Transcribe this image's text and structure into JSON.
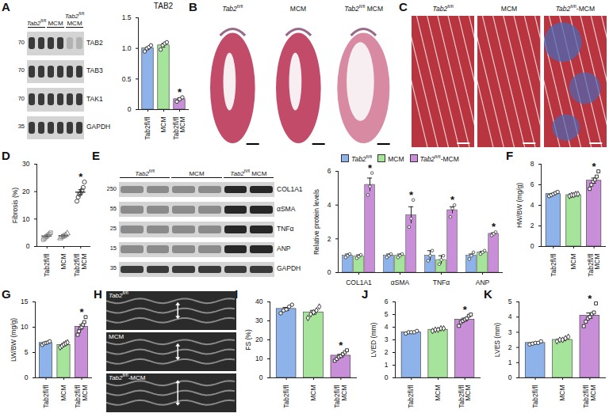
{
  "chart_data": [
    {
      "panel": "A",
      "type": "bar",
      "title": "TAB2",
      "categories": [
        "Tab2fl/fl",
        "MCM",
        "Tab2fl/fl MCM"
      ],
      "values": [
        1.0,
        1.05,
        0.17
      ],
      "errors": [
        0.02,
        0.03,
        0.02
      ],
      "points": [
        [
          0.95,
          1.0,
          1.02,
          1.05
        ],
        [
          0.98,
          1.05,
          1.08,
          1.1
        ],
        [
          0.13,
          0.17,
          0.2
        ]
      ],
      "colors": [
        "#8db3ea",
        "#a6e39b",
        "#c88fd8"
      ],
      "markers": [
        "circle",
        "circle",
        "circle"
      ],
      "ylim": [
        0,
        1.5
      ],
      "yticks": [
        0,
        0.5,
        {
          "value": 1,
          "label": "1.0"
        },
        1.5
      ],
      "annotations": [
        {
          "category": "Tab2fl/fl MCM",
          "text": "*"
        }
      ]
    },
    {
      "panel": "D",
      "type": "scatter",
      "ylabel": "Fibrosis (%)",
      "categories": [
        "Tab2fl/fl",
        "MCM",
        "Tab2fl/fl MCM"
      ],
      "values": [
        3.8,
        3.9,
        19.8
      ],
      "errors": [
        0.4,
        0.3,
        0.9
      ],
      "points": [
        [
          2.5,
          3,
          3.5,
          4,
          4.5,
          5
        ],
        [
          3,
          3.5,
          3.8,
          4.2,
          4.8
        ],
        [
          16.5,
          18,
          19,
          19.5,
          20.5,
          21.5,
          23.5
        ]
      ],
      "colors": [
        "#808080",
        "#808080",
        "#333333"
      ],
      "markers": [
        "square",
        "triangle",
        "circle"
      ],
      "ylim": [
        0,
        30
      ],
      "yticks": [
        0,
        10,
        20,
        30
      ],
      "annotations": [
        {
          "category": "Tab2fl/fl MCM",
          "text": "*"
        }
      ]
    },
    {
      "panel": "E",
      "type": "bar",
      "ylabel": "Relative protein levels",
      "categories": [
        "COL1A1",
        "αSMA",
        "TNFα",
        "ANP"
      ],
      "series": [
        {
          "name": "Tab2fl/fl",
          "color": "#8db3ea",
          "values": [
            1.0,
            1.0,
            1.0,
            1.0
          ],
          "errors": [
            0.1,
            0.1,
            0.3,
            0.1
          ],
          "points": [
            [
              0.9,
              1.0,
              1.1
            ],
            [
              0.9,
              1.0,
              1.1
            ],
            [
              0.7,
              1.0,
              1.3
            ],
            [
              0.8,
              1.0,
              1.2
            ]
          ]
        },
        {
          "name": "MCM",
          "color": "#a6e39b",
          "values": [
            0.95,
            1.0,
            0.75,
            1.2
          ],
          "errors": [
            0.1,
            0.1,
            0.25,
            0.06
          ],
          "points": [
            [
              0.85,
              0.95,
              1.05
            ],
            [
              0.9,
              1.0,
              1.1
            ],
            [
              0.5,
              0.75,
              1.0
            ],
            [
              1.1,
              1.2,
              1.3
            ]
          ]
        },
        {
          "name": "Tab2fl/fl-MCM",
          "color": "#c88fd8",
          "values": [
            5.2,
            3.4,
            3.7,
            2.3
          ],
          "errors": [
            0.4,
            0.5,
            0.2,
            0.06
          ],
          "points": [
            [
              4.6,
              5.1,
              5.9
            ],
            [
              2.7,
              3.2,
              4.3
            ],
            [
              3.3,
              3.8,
              4.0
            ],
            [
              2.2,
              2.3,
              2.4
            ]
          ]
        }
      ],
      "legend": "top",
      "ylim": [
        0,
        6
      ],
      "yticks": [
        0,
        2,
        4,
        6
      ],
      "annotations": [
        {
          "category": "COL1A1",
          "series": "Tab2fl/fl-MCM",
          "text": "*"
        },
        {
          "category": "αSMA",
          "series": "Tab2fl/fl-MCM",
          "text": "*"
        },
        {
          "category": "TNFα",
          "series": "Tab2fl/fl-MCM",
          "text": "*"
        },
        {
          "category": "ANP",
          "series": "Tab2fl/fl-MCM",
          "text": "*"
        }
      ]
    },
    {
      "panel": "F",
      "type": "bar",
      "ylabel": "HW/BW (mg/g)",
      "categories": [
        "Tab2fl/fl",
        "MCM",
        "Tab2fl/fl MCM"
      ],
      "values": [
        5.1,
        5.0,
        6.4
      ],
      "errors": [
        0.07,
        0.04,
        0.25
      ],
      "points": [
        [
          4.9,
          5.0,
          5.1,
          5.2,
          5.3
        ],
        [
          4.9,
          5.0,
          5.0,
          5.1,
          5.1
        ],
        [
          5.6,
          6.0,
          6.3,
          6.5,
          6.8,
          7.3
        ]
      ],
      "colors": [
        "#8db3ea",
        "#a6e39b",
        "#c88fd8"
      ],
      "markers": [
        "circle",
        "diamond",
        "square"
      ],
      "ylim": [
        0,
        8
      ],
      "yticks": [
        0,
        2,
        4,
        6,
        8
      ],
      "annotations": [
        {
          "category": "Tab2fl/fl MCM",
          "text": "*"
        }
      ]
    },
    {
      "panel": "G",
      "type": "bar",
      "ylabel": "LW/BW (mg/g)",
      "categories": [
        "Tab2fl/fl",
        "MCM",
        "Tab2fl/fl MCM"
      ],
      "values": [
        6.9,
        6.5,
        10.1
      ],
      "errors": [
        0.12,
        0.18,
        0.43
      ],
      "points": [
        [
          6.5,
          6.8,
          6.9,
          7.0,
          7.2
        ],
        [
          6.0,
          6.3,
          6.6,
          6.8,
          7.0
        ],
        [
          8.5,
          9.2,
          9.8,
          10.0,
          10.5,
          11.0,
          12.0
        ]
      ],
      "colors": [
        "#8db3ea",
        "#a6e39b",
        "#c88fd8"
      ],
      "markers": [
        "circle",
        "diamond",
        "square"
      ],
      "ylim": [
        0,
        15
      ],
      "yticks": [
        0,
        5,
        10,
        15
      ],
      "annotations": [
        {
          "category": "Tab2fl/fl MCM",
          "text": "*"
        }
      ]
    },
    {
      "panel": "I",
      "type": "bar",
      "ylabel": "FS (%)",
      "categories": [
        "Tab2fl/fl",
        "MCM",
        "Tab2fl/fl MCM"
      ],
      "values": [
        36.3,
        34.5,
        11.7
      ],
      "errors": [
        0.8,
        1.0,
        0.7
      ],
      "points": [
        [
          34,
          35.5,
          36,
          37.5,
          38.5
        ],
        [
          31.5,
          33.5,
          34.5,
          35.5,
          37.5
        ],
        [
          9,
          10,
          11,
          11.5,
          12.5,
          13.5,
          14.5
        ]
      ],
      "colors": [
        "#8db3ea",
        "#a6e39b",
        "#c88fd8"
      ],
      "markers": [
        "circle",
        "diamond",
        "square"
      ],
      "ylim": [
        0,
        40
      ],
      "yticks": [
        0,
        10,
        20,
        30,
        40
      ],
      "annotations": [
        {
          "category": "Tab2fl/fl MCM",
          "text": "*"
        }
      ]
    },
    {
      "panel": "J",
      "type": "bar",
      "ylabel": "LVED (mm)",
      "categories": [
        "Tab2fl/fl",
        "MCM",
        "Tab2fl/fl MCM"
      ],
      "values": [
        3.6,
        3.8,
        4.6
      ],
      "errors": [
        0.03,
        0.04,
        0.11
      ],
      "points": [
        [
          3.5,
          3.6,
          3.6,
          3.6,
          3.7
        ],
        [
          3.7,
          3.8,
          3.8,
          3.9,
          3.9
        ],
        [
          4.1,
          4.4,
          4.5,
          4.6,
          4.7,
          4.9,
          5.0
        ]
      ],
      "colors": [
        "#8db3ea",
        "#a6e39b",
        "#c88fd8"
      ],
      "markers": [
        "circle",
        "diamond",
        "square"
      ],
      "ylim": [
        0,
        6
      ],
      "yticks": [
        0,
        1,
        2,
        3,
        4,
        5,
        6
      ],
      "annotations": [
        {
          "category": "Tab2fl/fl MCM",
          "text": "*"
        }
      ]
    },
    {
      "panel": "K",
      "type": "bar",
      "ylabel": "LVES (mm)",
      "categories": [
        "Tab2fl/fl",
        "MCM",
        "Tab2fl/fl MCM"
      ],
      "values": [
        2.3,
        2.5,
        4.1
      ],
      "errors": [
        0.03,
        0.05,
        0.17
      ],
      "points": [
        [
          2.2,
          2.25,
          2.3,
          2.3,
          2.4
        ],
        [
          2.4,
          2.5,
          2.5,
          2.6,
          2.7
        ],
        [
          3.4,
          3.7,
          3.9,
          4.0,
          4.2,
          4.3,
          4.9
        ]
      ],
      "colors": [
        "#8db3ea",
        "#a6e39b",
        "#c88fd8"
      ],
      "markers": [
        "circle",
        "diamond",
        "square"
      ],
      "ylim": [
        0,
        5
      ],
      "yticks": [
        0,
        1,
        2,
        3,
        4,
        5
      ],
      "annotations": [
        {
          "category": "Tab2fl/fl MCM",
          "text": "*"
        }
      ]
    }
  ],
  "blots": [
    {
      "panel": "A",
      "groups": [
        "Tab2fl/fl",
        "MCM",
        "Tab2fl/fl MCM"
      ],
      "rows": [
        {
          "label": "TAB2",
          "mw": 70
        },
        {
          "label": "TAB3",
          "mw": 70
        },
        {
          "label": "TAK1",
          "mw": 70
        },
        {
          "label": "GAPDH",
          "mw": 35
        }
      ]
    },
    {
      "panel": "E",
      "groups": [
        "Tab2fl/fl",
        "MCM",
        "Tab2fl/fl MCM"
      ],
      "rows": [
        {
          "label": "COL1A1",
          "mw": 250
        },
        {
          "label": "αSMA",
          "mw": 55
        },
        {
          "label": "TNFα",
          "mw": 25
        },
        {
          "label": "ANP",
          "mw": 15
        },
        {
          "label": "GAPDH",
          "mw": 35
        }
      ]
    }
  ],
  "images": [
    {
      "panel": "B",
      "labels": [
        "Tab2fl/fl",
        "MCM",
        "Tab2fl/fl MCM"
      ]
    },
    {
      "panel": "C",
      "labels": [
        "Tab2fl/fl",
        "MCM",
        "Tab2fl/fl-MCM"
      ]
    },
    {
      "panel": "H",
      "labels": [
        "Tab2fl/fl",
        "MCM",
        "Tab2fl/fl-MCM"
      ]
    }
  ]
}
